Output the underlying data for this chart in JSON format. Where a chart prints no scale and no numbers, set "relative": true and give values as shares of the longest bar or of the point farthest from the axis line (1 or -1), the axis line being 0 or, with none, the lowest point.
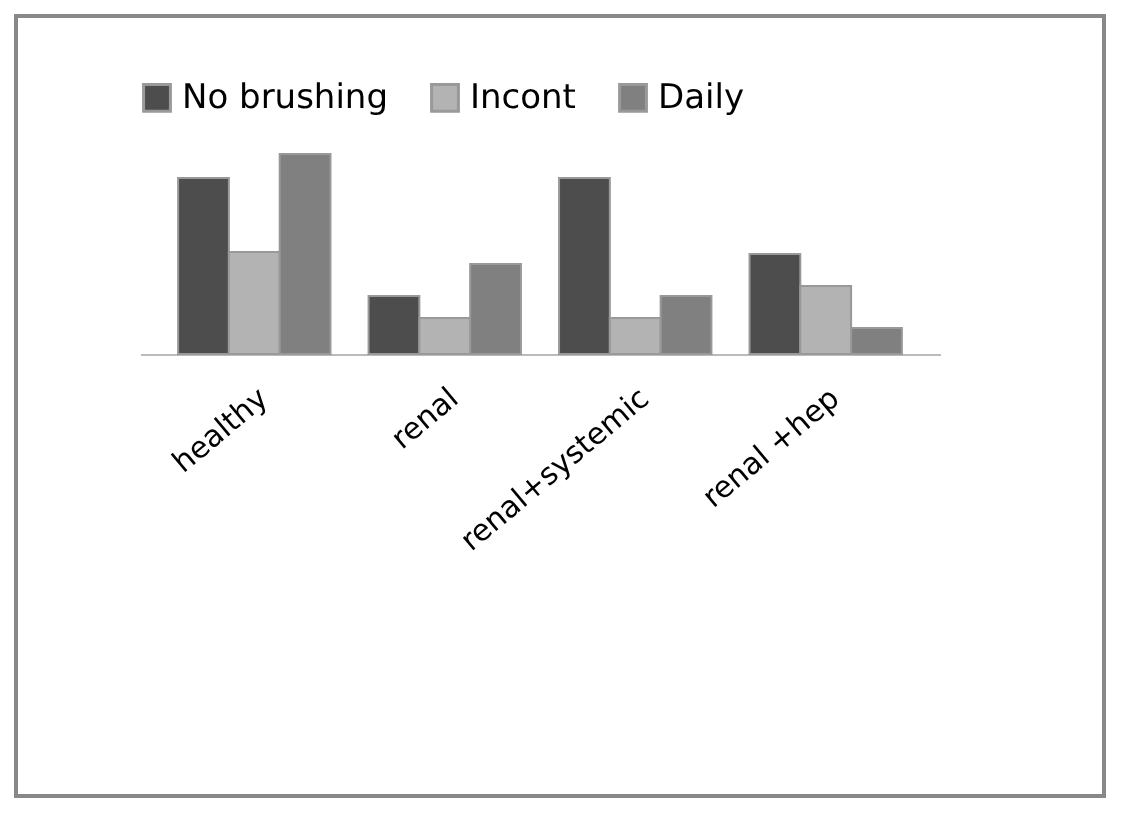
{
  "chart_data": {
    "type": "bar",
    "relative": true,
    "legend": "top",
    "categories": [
      "healthy",
      "renal",
      "renal+systemic",
      "renal +hep"
    ],
    "series": [
      {
        "name": "No brushing",
        "color": "#4d4d4d",
        "values": [
          0.88,
          0.29,
          0.88,
          0.5
        ]
      },
      {
        "name": "Incont",
        "color": "#b3b3b3",
        "values": [
          0.51,
          0.18,
          0.18,
          0.34
        ]
      },
      {
        "name": "Daily",
        "color": "#808080",
        "values": [
          1,
          0.45,
          0.29,
          0.13
        ]
      }
    ]
  }
}
